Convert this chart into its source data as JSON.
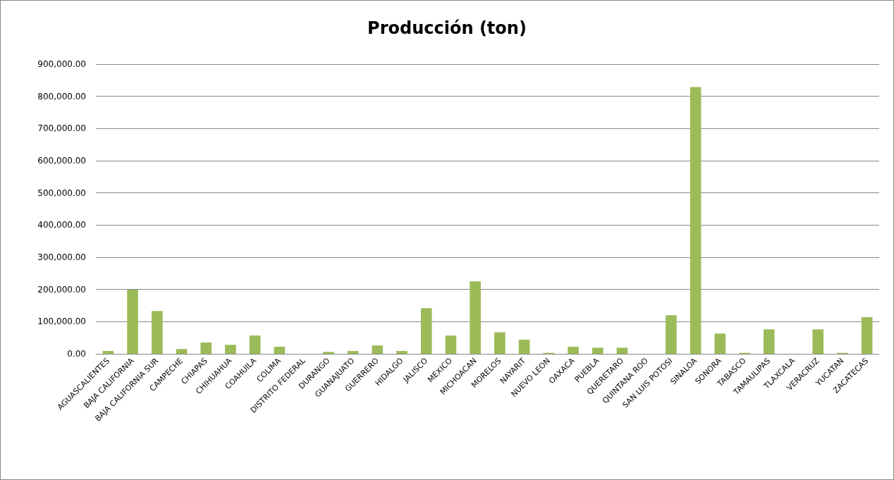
{
  "chart_data": {
    "type": "bar",
    "title": "Producción (ton)",
    "categories": [
      "AGUASCALIENTES",
      "BAJA CALIFORNIA",
      "BAJA CALIFORNIA SUR",
      "CAMPECHE",
      "CHIAPAS",
      "CHIHUAHUA",
      "COAHUILA",
      "COLIMA",
      "DISTRITO FEDERAL",
      "DURANGO",
      "GUANAJUATO",
      "GUERRERO",
      "HIDALGO",
      "JALISCO",
      "MEXICO",
      "MICHOACAN",
      "MORELOS",
      "NAYARIT",
      "NUEVO LEON",
      "OAXACA",
      "PUEBLA",
      "QUERETARO",
      "QUINTANA ROO",
      "SAN LUIS POTOSI",
      "SINALOA",
      "SONORA",
      "TABASCO",
      "TAMAULIPAS",
      "TLAXCALA",
      "VERACRUZ",
      "YUCATAN",
      "ZACATECAS"
    ],
    "values": [
      9000,
      199000,
      133000,
      15000,
      35000,
      28000,
      57000,
      22000,
      0,
      6000,
      9000,
      26000,
      9000,
      142000,
      57000,
      225000,
      67000,
      44000,
      3000,
      22000,
      19000,
      19000,
      0,
      120000,
      829000,
      63000,
      3000,
      76000,
      0,
      76000,
      3000,
      114000
    ],
    "color": "#9bbb59",
    "ylim": [
      0,
      900000
    ],
    "yticks": [
      {
        "value": 0,
        "label": "0.00"
      },
      {
        "value": 100000,
        "label": "100,000.00"
      },
      {
        "value": 200000,
        "label": "200,000.00"
      },
      {
        "value": 300000,
        "label": "300,000.00"
      },
      {
        "value": 400000,
        "label": "400,000.00"
      },
      {
        "value": 500000,
        "label": "500,000.00"
      },
      {
        "value": 600000,
        "label": "600,000.00"
      },
      {
        "value": 700000,
        "label": "700,000.00"
      },
      {
        "value": 800000,
        "label": "800,000.00"
      },
      {
        "value": 900000,
        "label": "900,000.00"
      }
    ],
    "grid": "y"
  }
}
